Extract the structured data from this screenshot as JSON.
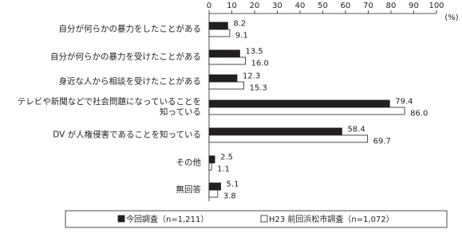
{
  "chart_data": {
    "type": "bar",
    "orientation": "horizontal",
    "xlabel": "(%)",
    "categories": [
      "自分が何らかの暴力をしたことがある",
      "自分が何らかの暴力を受けたことがある",
      "身近な人から相談を受けたことがある",
      "テレビや新聞などで社会問題になっていることを\n知っている",
      "DV が人権侵害であることを知っている",
      "その他",
      "無回答"
    ],
    "series": [
      {
        "name": "今回調査（n=1,211）",
        "color": "#231f20",
        "values": [
          8.2,
          13.5,
          12.3,
          79.4,
          58.4,
          2.5,
          5.1
        ],
        "value_labels": [
          "8.2",
          "13.5",
          "12.3",
          "79.4",
          "58.4",
          "2.5",
          "5.1"
        ]
      },
      {
        "name": "H23 前回浜松市調査（n=1,072）",
        "color": "#ffffff",
        "values": [
          9.1,
          16.0,
          15.3,
          86.0,
          69.7,
          1.1,
          3.8
        ],
        "value_labels": [
          "9.1",
          "16.0",
          "15.3",
          "86.0",
          "69.7",
          "1.1",
          "3.8"
        ]
      }
    ],
    "xlim": [
      0,
      100
    ],
    "xticks": [
      0,
      10,
      20,
      30,
      40,
      50,
      60,
      70,
      80,
      90,
      100
    ],
    "legend": "bottom"
  }
}
